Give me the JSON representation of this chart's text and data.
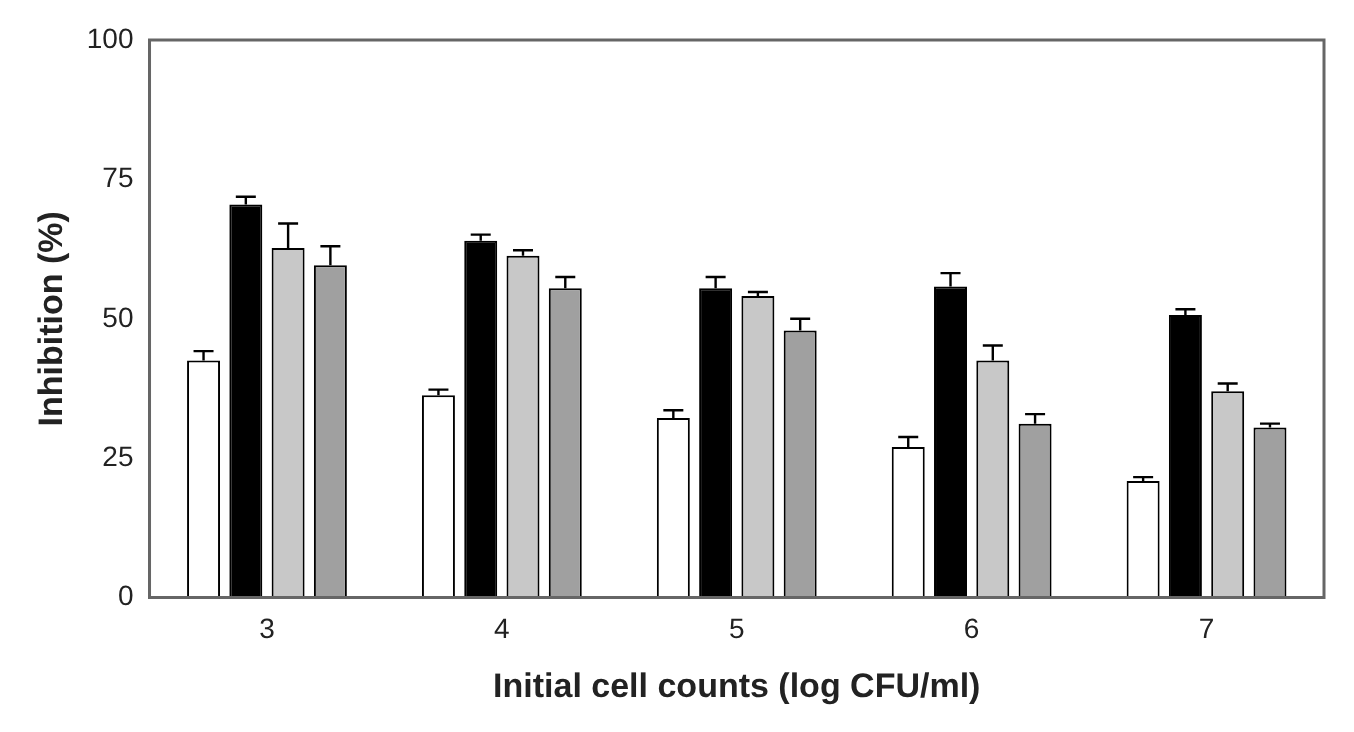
{
  "chart_data": {
    "type": "bar",
    "xlabel": "Initial cell counts (log CFU/ml)",
    "ylabel": "Inhibition (%)",
    "categories": [
      "3",
      "4",
      "5",
      "6",
      "7"
    ],
    "series": [
      {
        "color": "#ffffff",
        "values": [
          42.5,
          36.3,
          32.2,
          27,
          20.9
        ],
        "errors": [
          [
            42.5,
            44.2
          ],
          [
            36.3,
            37.3
          ],
          [
            32.2,
            33.6
          ],
          [
            27,
            28.8
          ],
          [
            20.9,
            21.6
          ]
        ]
      },
      {
        "color": "#000000",
        "values": [
          70.5,
          64,
          55.5,
          55.8,
          50.7
        ],
        "errors": [
          [
            70.5,
            71.9
          ],
          [
            64,
            65.1
          ],
          [
            55.5,
            57.5
          ],
          [
            55.8,
            58.2
          ],
          [
            50.7,
            51.7
          ]
        ]
      },
      {
        "color": "#c8c8c8",
        "values": [
          62.7,
          61.3,
          54.1,
          42.5,
          37
        ],
        "errors": [
          [
            62.7,
            67.1
          ],
          [
            61.3,
            62.3
          ],
          [
            54.1,
            54.8
          ],
          [
            42.5,
            45.2
          ],
          [
            37,
            38.4
          ]
        ]
      },
      {
        "color": "#a0a0a0",
        "values": [
          59.6,
          55.5,
          47.9,
          31.2,
          30.5
        ],
        "errors": [
          [
            59.6,
            63
          ],
          [
            55.5,
            57.5
          ],
          [
            47.9,
            50
          ],
          [
            31.2,
            32.9
          ],
          [
            30.5,
            31.2
          ]
        ]
      }
    ],
    "ylim": [
      0,
      100
    ],
    "yticks": [
      0,
      25,
      50,
      75,
      100
    ],
    "grid": false,
    "legend": false
  }
}
